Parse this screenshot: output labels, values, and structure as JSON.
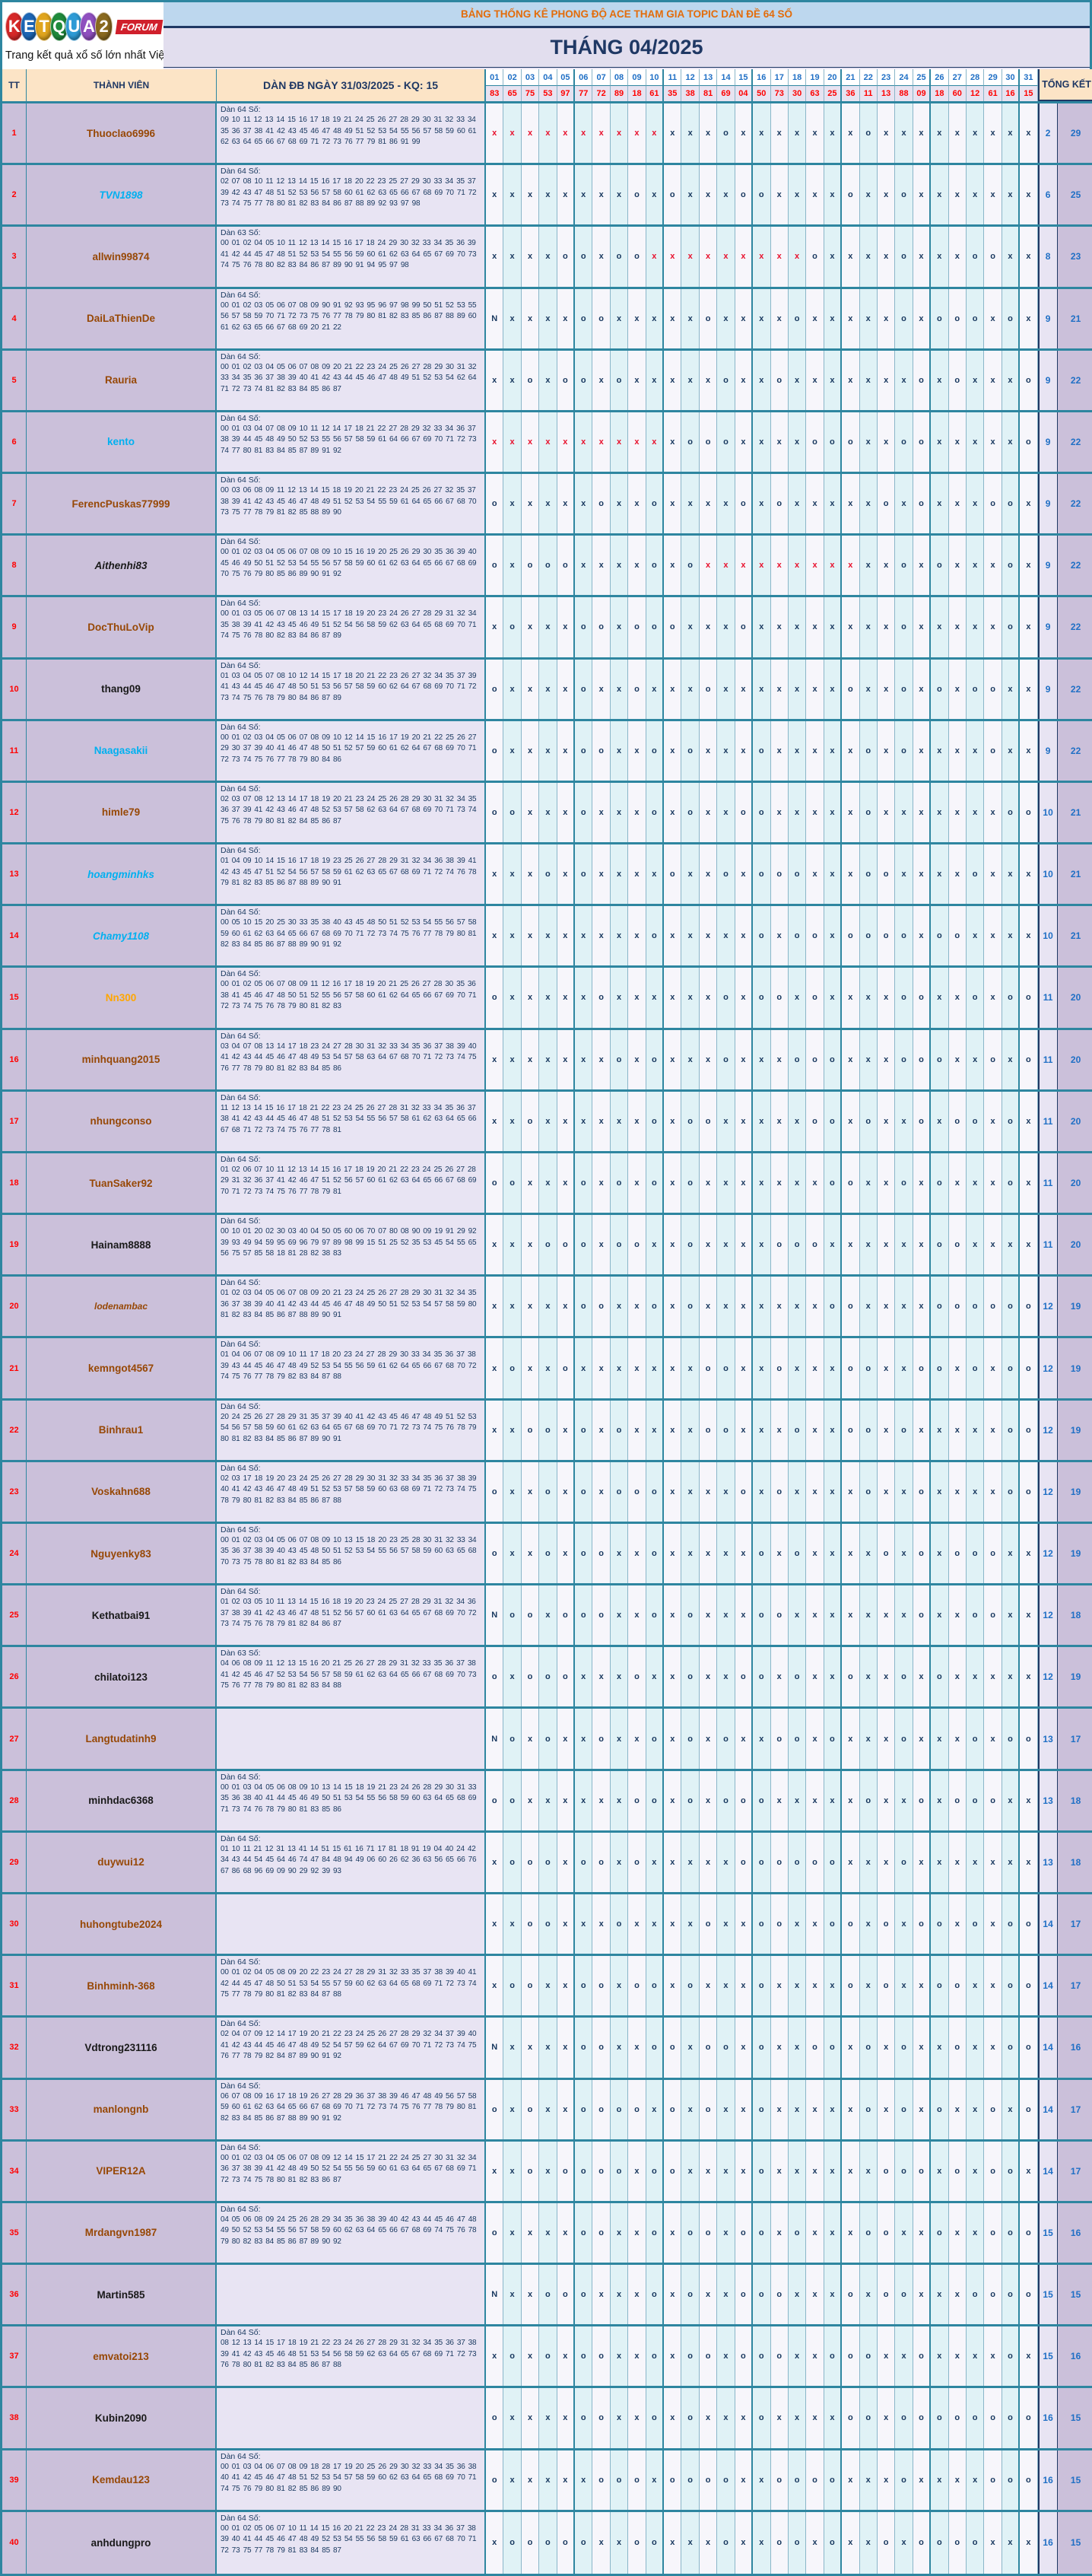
{
  "logo": {
    "letters": [
      {
        "ch": "K",
        "color": "#D62828"
      },
      {
        "ch": "E",
        "color": "#1D66B5"
      },
      {
        "ch": "T",
        "color": "#E0A51E"
      },
      {
        "ch": "Q",
        "color": "#1F8A3B"
      },
      {
        "ch": "U",
        "color": "#2E9BD6"
      },
      {
        "ch": "A",
        "color": "#8F4FBF"
      },
      {
        "ch": "2",
        "color": "#8A6A1F"
      }
    ],
    "forum": "FORUM",
    "tagline": "Trang kết quả xổ số lớn nhất Việt Nam"
  },
  "banner": "BẢNG THỐNG KÊ PHONG ĐỘ ACE THAM GIA TOPIC DÀN ĐỀ 64 SỐ",
  "month_title": "THÁNG 04/2025",
  "columns": {
    "tt": "TT",
    "member": "THÀNH VIÊN",
    "dan": "DÀN ĐB NGÀY 31/03/2025 - KQ: 15",
    "total": "TỔNG KẾT"
  },
  "days": [
    "01",
    "02",
    "03",
    "04",
    "05",
    "06",
    "07",
    "08",
    "09",
    "10",
    "11",
    "12",
    "13",
    "14",
    "15",
    "16",
    "17",
    "18",
    "19",
    "20",
    "21",
    "22",
    "23",
    "24",
    "25",
    "26",
    "27",
    "28",
    "29",
    "30",
    "31"
  ],
  "kq": [
    "83",
    "65",
    "75",
    "53",
    "97",
    "77",
    "72",
    "89",
    "18",
    "61",
    "35",
    "38",
    "81",
    "69",
    "04",
    "50",
    "73",
    "30",
    "63",
    "25",
    "36",
    "11",
    "13",
    "88",
    "09",
    "18",
    "60",
    "12",
    "61",
    "16",
    "15"
  ],
  "rows": [
    {
      "tt": "1",
      "name": "Thuoclao6996",
      "cls": "c-brown",
      "label": "Dàn 64 Số:",
      "nums": "09 10 11 12 13 14 15 16 17 18 19 21 24 25 26 27 28 29 30 31 32 33 34 35 36 37 38 41 42 43 45 46 47 48 49 51 52 53 54 55 56 57 58 59 60 61 62 63 64 65 66 67 68 69 71 72 73 76 77 79 81 86 91 99",
      "marks": "RRRRRRRRRRXXXOXXXXXXXOXXXXXXXXX",
      "win": "2",
      "loss": "29"
    },
    {
      "tt": "2",
      "name": "TVN1898",
      "cls": "c-cyan-i",
      "label": "Dàn 64 Số:",
      "nums": "02 07 08 10 11 12 13 14 15 16 17 18 20 22 23 25 27 29 30 33 34 35 37 39 42 43 47 48 51 52 53 56 57 58 60 61 62 63 65 66 67 68 69 70 71 72 73 74 75 77 78 80 81 82 83 84 86 87 88 89 92 93 97 98",
      "marks": "XXXXXXXXOXOXXXOOXXXXOXXOXXXXXXX",
      "win": "6",
      "loss": "25"
    },
    {
      "tt": "3",
      "name": "allwin99874",
      "cls": "c-brown",
      "label": "Dàn 63 Số:",
      "nums": "00 01 02 04 05 10 11 12 13 14 15 16 17 18 24 29 30 32 33 34 35 36 39 41 42 44 45 47 48 51 52 53 54 55 56 59 60 61 62 63 64 65 67 69 70 73 74 75 76 78 80 82 83 84 86 87 89 90 91 94 95 97 98",
      "marks": "XXXXOOXOORRRRRRRRROXXXXOXXXOOXX",
      "win": "8",
      "loss": "23"
    },
    {
      "tt": "4",
      "name": "DaiLaThienDe",
      "cls": "c-brown",
      "label": "Dàn 64 Số:",
      "nums": "00 01 02 03 05 06 07 08 09 90 91 92 93 95 96 97 98 99 50 51 52 53 55 56 57 58 59 70 71 72 73 75 76 77 78 79 80 81 82 83 85 86 87 88 89 60 61 62 63 65 66 67 68 69 20 21 22",
      "marks": "NXXXXOOXXXXXOXXXXOXXXXXOXOOOXOX",
      "win": "9",
      "loss": "21"
    },
    {
      "tt": "5",
      "name": "Rauria",
      "cls": "c-brown",
      "label": "Dàn 64 Số:",
      "nums": "00 01 02 03 04 05 06 07 08 09 20 21 22 23 24 25 26 27 28 29 30 31 32 33 34 35 36 37 38 39 40 41 42 43 44 45 46 47 48 49 51 52 53 54 62 64 71 72 73 74 81 82 83 84 85 86 87",
      "marks": "XXOXOOXOXXXXXOXXOXXXXXXXOXOXXXO",
      "win": "9",
      "loss": "22"
    },
    {
      "tt": "6",
      "name": "kento",
      "cls": "c-cyan",
      "label": "Dàn 64 Số:",
      "nums": "00 01 03 04 07 08 09 10 11 12 14 17 18 21 22 27 28 29 32 33 34 36 37 38 39 44 45 48 49 50 52 53 55 56 57 58 59 61 64 66 67 69 70 71 72 73 74 77 80 81 83 84 85 87 89 91 92",
      "marks": "RRRRRRRRRRXOOOXXXXOOOXXOOXXXXXO",
      "win": "9",
      "loss": "22"
    },
    {
      "tt": "7",
      "name": "FerencPuskas77999",
      "cls": "c-brown",
      "label": "Dàn 64 Số:",
      "nums": "00 03 06 08 09 11 12 13 14 15 18 19 20 21 22 23 24 25 26 27 32 35 37 38 39 41 42 43 45 46 47 48 49 51 52 53 54 55 59 61 64 65 66 67 68 70 73 75 77 78 79 81 82 85 88 89 90",
      "marks": "OXXXXXOXXOXXXXOXOXXXXXOXOXXXOOX",
      "win": "9",
      "loss": "22"
    },
    {
      "tt": "8",
      "name": "Aithenhi83",
      "cls": "c-black-i",
      "label": "Dàn 64 Số:",
      "nums": "00 01 02 03 04 05 06 07 08 09 10 15 16 19 20 25 26 29 30 35 36 39 40 45 46 49 50 51 52 53 54 55 56 57 58 59 60 61 62 63 64 65 66 67 68 69 70 75 76 79 80 85 86 89 90 91 92",
      "marks": "OXOOOXXXXOXORRRRRRRRRXXOXOXXXOX",
      "win": "9",
      "loss": "22"
    },
    {
      "tt": "9",
      "name": "DocThuLoVip",
      "cls": "c-brown",
      "label": "Dàn 64 Số:",
      "nums": "00 01 03 05 06 07 08 13 14 15 17 18 19 20 23 24 26 27 28 29 31 32 34 35 38 39 41 42 43 45 46 49 51 52 54 56 58 59 62 63 64 65 68 69 70 71 74 75 76 78 80 82 83 84 86 87 89",
      "marks": "XOXXXOOXOOOXXXOXXXXXXXXOXXXXXOX",
      "win": "9",
      "loss": "22"
    },
    {
      "tt": "10",
      "name": "thang09",
      "cls": "c-black",
      "label": "Dàn 64 Số:",
      "nums": "01 03 04 05 07 08 10 12 14 15 17 18 20 21 22 23 26 27 32 34 35 37 39 41 43 44 45 46 47 48 50 51 53 56 57 58 59 60 62 64 67 68 69 70 71 72 73 74 75 76 78 79 80 84 86 87 89",
      "marks": "OXXXXOXXOXXXOXXXXXXXOXXOXOXOOXX",
      "win": "9",
      "loss": "22"
    },
    {
      "tt": "11",
      "name": "Naagasakii",
      "cls": "c-cyan",
      "label": "Dàn 64 Số:",
      "nums": "00 01 02 03 04 05 06 07 08 09 10 12 14 15 16 17 19 20 21 22 25 26 27 29 30 37 39 40 41 46 47 48 50 51 52 57 59 60 61 62 64 67 68 69 70 71 72 73 74 75 76 77 78 79 80 84 86",
      "marks": "OXXXXOOXXOXOXXXOXXXXXOXOXXXXOXX",
      "win": "9",
      "loss": "22"
    },
    {
      "tt": "12",
      "name": "himle79",
      "cls": "c-brown",
      "label": "Dàn 64 Số:",
      "nums": "02 03 07 08 12 13 14 17 18 19 20 21 23 24 25 26 28 29 30 31 32 34 35 36 37 39 41 42 43 46 47 48 52 53 57 58 62 63 64 67 68 69 70 71 73 74 75 76 78 79 80 81 82 84 85 86 87",
      "marks": "OOXXXOXXXOXOXXOOXXXXXOXXXXXXXOO",
      "win": "10",
      "loss": "21"
    },
    {
      "tt": "13",
      "name": "hoangminhks",
      "cls": "c-cyan-i",
      "label": "Dàn 64 Số:",
      "nums": "01 04 09 10 14 15 16 17 18 19 23 25 26 27 28 29 31 32 34 36 38 39 41 42 43 45 47 51 52 54 56 57 58 59 61 62 63 65 67 68 69 71 72 74 76 78 79 81 82 83 85 86 87 88 89 90 91",
      "marks": "XXXOXOXXXXOXXOXOOOXXXOOXXXXOXXX",
      "win": "10",
      "loss": "21"
    },
    {
      "tt": "14",
      "name": "Chamy1108",
      "cls": "c-cyan-i",
      "label": "Dàn 64 Số:",
      "nums": "00 05 10 15 20 25 30 33 35 38 40 43 45 48 50 51 52 53 54 55 56 57 58 59 60 61 62 63 64 65 66 67 68 69 70 71 72 73 74 75 76 77 78 79 80 81 82 83 84 85 86 87 88 89 90 91 92",
      "marks": "XXXXXXXXXOXXXXXOXOOXOOOOXOOXXXX",
      "win": "10",
      "loss": "21"
    },
    {
      "tt": "15",
      "name": "Nn300",
      "cls": "c-orange",
      "label": "Dàn 64 Số:",
      "nums": "00 01 02 05 06 07 08 09 11 12 16 17 18 19 20 21 25 26 27 28 30 35 36 38 41 45 46 47 48 50 51 52 55 56 57 58 60 61 62 64 65 66 67 69 70 71 72 73 74 75 76 78 79 80 81 82 83",
      "marks": "OXXXXXOXXXXXXOXOOXOXXXXOOXXOXOO",
      "win": "11",
      "loss": "20"
    },
    {
      "tt": "16",
      "name": "minhquang2015",
      "cls": "c-brown",
      "label": "Dàn 64 Số:",
      "nums": "03 04 07 08 13 14 17 18 23 24 27 28 30 31 32 33 34 35 36 37 38 39 40 41 42 43 44 45 46 47 48 49 53 54 57 58 63 64 67 68 70 71 72 73 74 75 76 77 78 79 80 81 82 83 84 85 86",
      "marks": "XXXXXXXOXOXXXOXXXOOOXXXOOOXXOXO",
      "win": "11",
      "loss": "20"
    },
    {
      "tt": "17",
      "name": "nhungconso",
      "cls": "c-brown",
      "label": "Dàn 64 Số:",
      "nums": "11 12 13 14 15 16 17 18 21 22 23 24 25 26 27 28 31 32 33 34 35 36 37 38 41 42 43 44 45 46 47 48 51 52 53 54 55 56 57 58 61 62 63 64 65 66 67 68 71 72 73 74 75 76 77 78 81",
      "marks": "XXOXXXXXXOXOOXXXXXOOXOXXOXOOXOX",
      "win": "11",
      "loss": "20"
    },
    {
      "tt": "18",
      "name": "TuanSaker92",
      "cls": "c-brown",
      "label": "Dàn 64 Số:",
      "nums": "01 02 06 07 10 11 12 13 14 15 16 17 18 19 20 21 22 23 24 25 26 27 28 29 31 32 36 37 41 42 46 47 51 52 56 57 60 61 62 63 64 65 66 67 68 69 70 71 72 73 74 75 76 77 78 79 81",
      "marks": "OOXXXOXOXOXOXXXXXXXOOXXOXOXXXOX",
      "win": "11",
      "loss": "20"
    },
    {
      "tt": "19",
      "name": "Hainam8888",
      "cls": "c-black",
      "label": "Dàn 64 Số:",
      "nums": "00 10 01 20 02 30 03 40 04 50 05 60 06 70 07 80 08 90 09 19 91 29 92 39 93 49 94 59 95 69 96 79 97 89 98 99 15 51 25 52 35 53 45 54 55 65 56 75 57 85 58 18 81 28 82 38 83",
      "marks": "XXXOOOXOOXXOXXXXOOOXXXXXXOOXXXX",
      "win": "11",
      "loss": "20"
    },
    {
      "tt": "20",
      "name": "lodenambac",
      "cls": "c-brown-i",
      "label": "Dàn 64 Số:",
      "nums": "01 02 03 04 05 06 07 08 09 20 21 23 24 25 26 27 28 29 30 31 32 34 35 36 37 38 39 40 41 42 43 44 45 46 47 48 49 50 51 52 53 54 57 58 59 80 81 82 83 84 85 86 87 88 89 90 91",
      "marks": "XXXXXOOXXOXOXXXXXXXOOXXXXOOOOOO",
      "win": "12",
      "loss": "19"
    },
    {
      "tt": "21",
      "name": "kemngot4567",
      "cls": "c-brown",
      "label": "Dàn 64 Số:",
      "nums": "01 04 06 07 08 09 10 11 17 18 20 23 24 27 28 29 30 33 34 35 36 37 38 39 43 44 45 46 47 48 49 52 53 54 55 56 59 61 62 64 65 66 67 68 70 72 74 75 76 77 78 79 82 83 84 87 88",
      "marks": "XOXXOXXXXXXXOOXXOXXXOOXXOOXOXOO",
      "win": "12",
      "loss": "19"
    },
    {
      "tt": "22",
      "name": "Binhrau1",
      "cls": "c-brown",
      "label": "Dàn 64 Số:",
      "nums": "20 24 25 26 27 28 29 31 35 37 39 40 41 42 43 45 46 47 48 49 51 52 53 54 56 57 58 59 60 61 62 63 64 65 67 68 69 70 71 72 73 74 75 76 78 79 80 81 82 83 84 85 86 87 89 90 91",
      "marks": "XXOOXOXOXXXXOOXXXOXXOOXOXXXXXOO",
      "win": "12",
      "loss": "19"
    },
    {
      "tt": "23",
      "name": "Voskahn688",
      "cls": "c-brown",
      "label": "Dàn 64 Số:",
      "nums": "02 03 17 18 19 20 23 24 25 26 27 28 29 30 31 32 33 34 35 36 37 38 39 40 41 42 43 46 47 48 49 51 52 53 57 58 59 60 63 68 69 71 72 73 74 75 78 79 80 81 82 83 84 85 86 87 88",
      "marks": "OXXOXOXOOOXXXXOXOXXXXOXXOXXXXOO",
      "win": "12",
      "loss": "19"
    },
    {
      "tt": "24",
      "name": "Nguyenky83",
      "cls": "c-brown",
      "label": "Dàn 64 Số:",
      "nums": "00 01 02 03 04 05 06 07 08 09 10 13 15 18 20 23 25 28 30 31 32 33 34 35 36 37 38 39 40 43 45 48 50 51 52 53 54 55 56 57 58 59 60 63 65 68 70 73 75 78 80 81 82 83 84 85 86",
      "marks": "OXXOXOOXXOXXXXXOXOXXXXOXOXOOOXX",
      "win": "12",
      "loss": "19"
    },
    {
      "tt": "25",
      "name": "Kethatbai91",
      "cls": "c-black",
      "label": "Dàn 64 Số:",
      "nums": "01 02 03 05 10 11 13 14 15 16 18 19 20 23 24 25 27 28 29 31 32 34 36 37 38 39 41 42 43 46 47 48 51 52 56 57 60 61 63 64 65 67 68 69 70 72 73 74 75 76 78 79 81 82 84 86 87",
      "marks": "NOOXOOOXXOXOXXXOOXXXXXXXOXXOOXX",
      "win": "12",
      "loss": "18"
    },
    {
      "tt": "26",
      "name": "chilatoi123",
      "cls": "c-black",
      "label": "Dàn 63 Số:",
      "nums": "04 06 08 09 11 12 13 15 16 20 21 25 26 27 28 29 31 32 33 35 36 37 38 41 42 45 46 47 52 53 54 56 57 58 59 61 62 63 64 65 66 67 68 69 70 73 75 76 77 78 79 80 81 82 83 84 88",
      "marks": "OXOOOXXXOXXOXXOOXOXXOXXOXOXXXXX",
      "win": "12",
      "loss": "19"
    },
    {
      "tt": "27",
      "name": "Langtudatinh9",
      "cls": "c-brown",
      "label": "",
      "nums": "",
      "marks": "NOXOXXOXXOXOXOXXOOXOXXXOXXXOXOO",
      "win": "13",
      "loss": "17"
    },
    {
      "tt": "28",
      "name": "minhdac6368",
      "cls": "c-black",
      "label": "Dàn 64 Số:",
      "nums": "00 01 03 04 05 06 08 09 10 13 14 15 18 19 21 23 24 26 28 29 30 31 33 35 36 38 40 41 44 45 46 49 50 51 53 54 55 56 58 59 60 63 64 65 68 69 71 73 74 76 78 79 80 81 83 85 86",
      "marks": "OOXXXXXXOOXOXOOOXXXXXOXXOXOOOXX",
      "win": "13",
      "loss": "18"
    },
    {
      "tt": "29",
      "name": "duywui12",
      "cls": "c-brown",
      "label": "Dàn 64 Số:",
      "nums": "01 10 11 21 12 31 13 41 14 51 15 61 16 71 17 81 18 91 19 04 40 24 42 34 43 44 54 45 64 46 74 47 84 48 94 49 06 60 26 62 36 63 56 65 66 76 67 86 68 96 69 09 90 29 92 39 93",
      "marks": "XOOOXOOXOXXXXXOOOOOOXXXOXXXXXXX",
      "win": "13",
      "loss": "18"
    },
    {
      "tt": "30",
      "name": "huhongtube2024",
      "cls": "c-brown",
      "label": "",
      "nums": "",
      "marks": "XXOOXXXOXXXXOXXOOXXOOXOXOOXOXOO",
      "win": "14",
      "loss": "17"
    },
    {
      "tt": "31",
      "name": "Binhminh-368",
      "cls": "c-brown",
      "label": "Dàn 64 Số:",
      "nums": "00 01 02 04 05 08 09 20 22 23 24 27 28 29 31 32 33 35 37 38 39 40 41 42 44 45 47 48 50 51 53 54 55 57 59 60 62 63 64 65 68 69 71 72 73 74 75 77 78 79 80 81 82 83 84 87 88",
      "marks": "XOOXXOOXOOXOXXXOXXXXOXOXXOOXXOO",
      "win": "14",
      "loss": "17"
    },
    {
      "tt": "32",
      "name": "Vdtrong231116",
      "cls": "c-black",
      "label": "Dàn 64 Số:",
      "nums": "02 04 07 09 12 14 17 19 20 21 22 23 24 25 26 27 28 29 32 34 37 39 40 41 42 43 44 45 46 47 48 49 52 54 57 59 62 64 67 69 70 71 72 73 74 75 76 77 78 79 82 84 87 89 90 91 92",
      "marks": "NXXXXOOXXOOXOOXOXXOOXOXOXXOXXOO",
      "win": "14",
      "loss": "16"
    },
    {
      "tt": "33",
      "name": "manlongnb",
      "cls": "c-brown",
      "label": "Dàn 64 Số:",
      "nums": "06 07 08 09 16 17 18 19 26 27 28 29 36 37 38 39 46 47 48 49 56 57 58 59 60 61 62 63 64 65 66 67 68 69 70 71 72 73 74 75 76 77 78 79 80 81 82 83 84 85 86 87 88 89 90 91 92",
      "marks": "OXOXXOOOOXOXOXXOXXXXXOXOXOXXOXO",
      "win": "14",
      "loss": "17"
    },
    {
      "tt": "34",
      "name": "VIPER12A",
      "cls": "c-brown",
      "label": "Dàn 64 Số:",
      "nums": "00 01 02 03 04 05 06 07 08 09 12 14 15 17 21 22 24 25 27 30 31 32 34 36 37 38 39 41 42 48 49 50 52 54 55 56 59 60 61 63 64 65 67 68 69 71 72 73 74 75 78 80 81 82 83 86 87",
      "marks": "XXOXOOOOXOOXXXXOXXXXXXOOOXOXOOX",
      "win": "14",
      "loss": "17"
    },
    {
      "tt": "35",
      "name": "Mrdangvn1987",
      "cls": "c-brown",
      "label": "Dàn 64 Số:",
      "nums": "04 05 06 08 09 24 25 26 28 29 34 35 36 38 39 40 42 43 44 45 46 47 48 49 50 52 53 54 55 56 57 58 59 60 62 63 64 65 66 67 68 69 74 75 76 78 79 80 82 83 84 85 86 87 89 90 92",
      "marks": "OXXXXOOXXOXOOXOOXOXXXOOXXOXXOOO",
      "win": "15",
      "loss": "16"
    },
    {
      "tt": "36",
      "name": "Martin585",
      "cls": "c-black",
      "label": "",
      "nums": "",
      "marks": "NXXOOOXXXOXOXXOOOXXXOXOOXXXOOOO",
      "win": "15",
      "loss": "15"
    },
    {
      "tt": "37",
      "name": "emvatoi213",
      "cls": "c-brown",
      "label": "Dàn 64 Số:",
      "nums": "08 12 13 14 15 17 18 19 21 22 23 24 26 27 28 29 31 32 34 35 36 37 38 39 41 42 43 45 46 48 51 53 54 56 58 59 62 63 64 65 67 68 69 71 72 73 76 78 80 81 82 83 84 85 86 87 88",
      "marks": "XOXOXOOXXOXOOXOOOXXOOOXXOXXXXOX",
      "win": "15",
      "loss": "16"
    },
    {
      "tt": "38",
      "name": "Kubin2090",
      "cls": "c-black",
      "label": "",
      "nums": "",
      "marks": "OXXXXOOXXOXOXXXOXXXXOOXOOOOOOOO",
      "win": "16",
      "loss": "15"
    },
    {
      "tt": "39",
      "name": "Kemdau123",
      "cls": "c-brown",
      "label": "Dàn 64 Số:",
      "nums": "00 01 03 04 06 07 08 09 18 28 17 19 20 25 26 29 30 32 33 34 35 36 38 40 41 42 45 46 47 48 51 52 53 54 57 58 59 60 62 63 64 65 68 69 70 71 74 75 76 79 80 81 82 85 86 89 90",
      "marks": "OXXXXXOOOXOOOOXXOOOOXXXOXXXXOOO",
      "win": "16",
      "loss": "15"
    },
    {
      "tt": "40",
      "name": "anhdungpro",
      "cls": "c-black",
      "label": "Dàn 64 Số:",
      "nums": "00 01 02 05 06 07 10 11 14 15 16 20 21 22 23 24 28 31 33 34 36 37 38 39 40 41 44 45 46 47 48 49 52 53 54 55 56 58 59 61 63 66 67 68 70 71 72 73 75 77 78 79 81 83 84 85 87",
      "marks": "XOOOOOXXOOXXXOXXOOXOXXOXOOOOXXX",
      "win": "16",
      "loss": "15"
    }
  ]
}
